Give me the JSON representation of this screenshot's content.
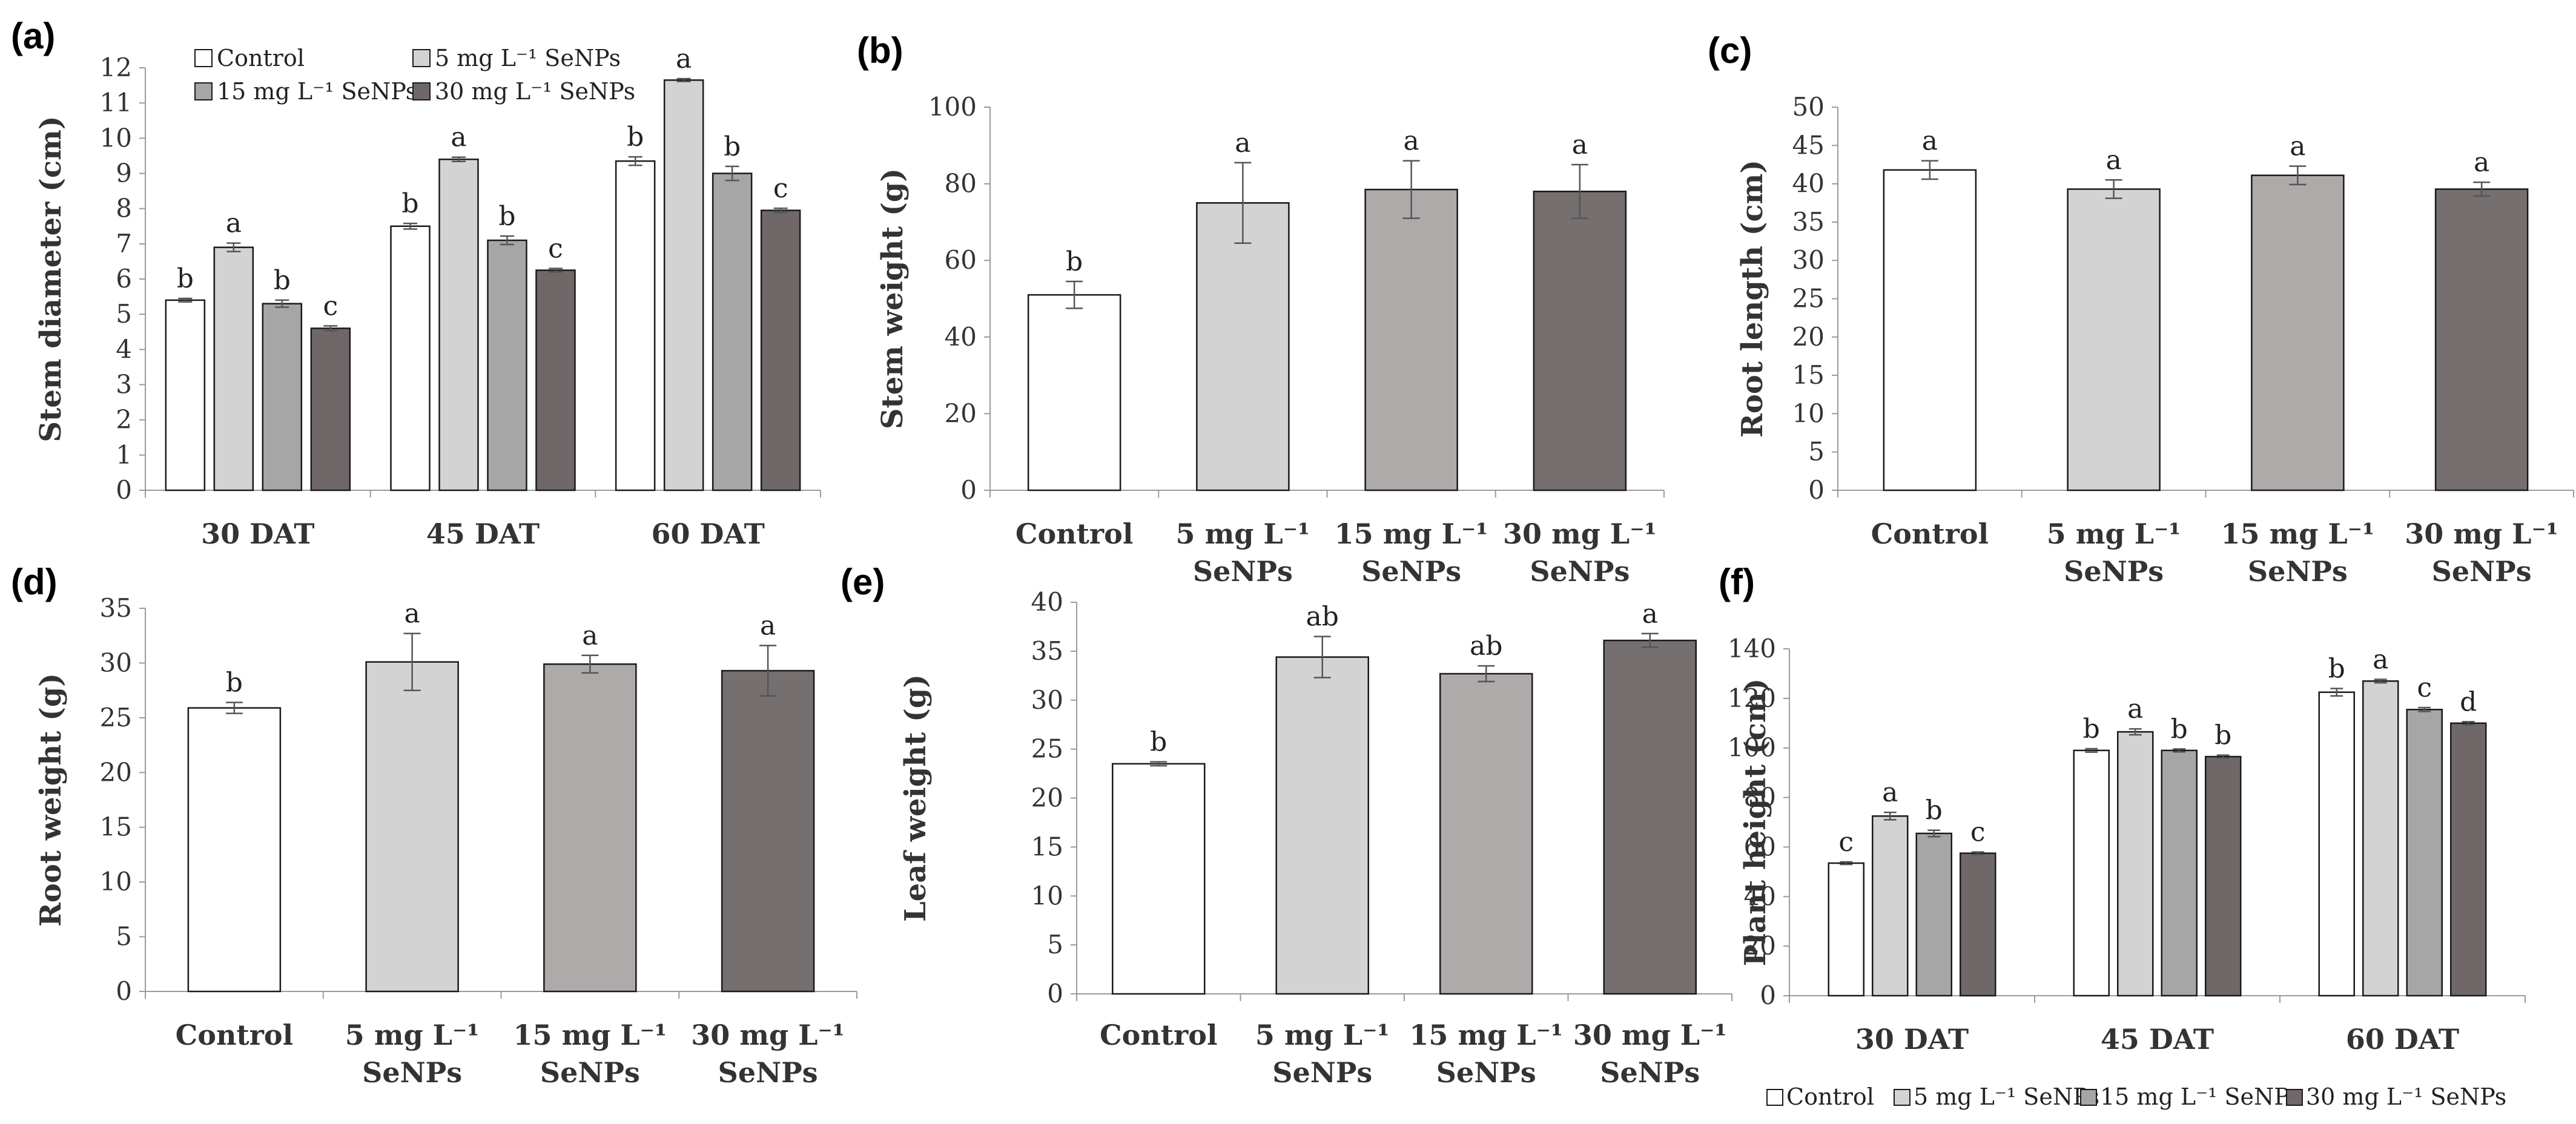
{
  "colors": {
    "Control": "#ffffff",
    "5 mg": "#d3d3d3",
    "15 mg": "#adaaa9",
    "30 mg": "#766f6f",
    "15 mg (grouped)": "#a6a6a6",
    "30 mg (grouped)": "#706868",
    "stroke": "#1a1a1a",
    "axis": "#9a9a9a"
  },
  "legend": {
    "control": "Control",
    "t5": "5 mg L⁻¹ SeNPs",
    "t15": "15 mg L⁻¹ SeNPs",
    "t30": "30 mg L⁻¹ SeNPs"
  },
  "chart_data": [
    {
      "id": "a",
      "panel_label": "(a)",
      "type": "bar",
      "ylabel": "Stem diameter (cm)",
      "ylim": [
        0,
        12
      ],
      "yticks": [
        "0",
        "1",
        "2",
        "3",
        "4",
        "5",
        "6",
        "7",
        "8",
        "9",
        "10",
        "11",
        "12"
      ],
      "categories": [
        "30 DAT",
        "45 DAT",
        "60 DAT"
      ],
      "series": [
        {
          "name": "Control",
          "values": [
            5.4,
            7.5,
            9.35
          ],
          "errors": [
            0.05,
            0.08,
            0.12
          ],
          "letters": [
            "b",
            "b",
            "b"
          ]
        },
        {
          "name": "5 mg L⁻¹ SeNPs",
          "values": [
            6.9,
            9.4,
            11.65
          ],
          "errors": [
            0.12,
            0.06,
            0.04
          ],
          "letters": [
            "a",
            "a",
            "a"
          ]
        },
        {
          "name": "15 mg L⁻¹ SeNPs",
          "values": [
            5.3,
            7.1,
            9.0
          ],
          "errors": [
            0.1,
            0.12,
            0.2
          ],
          "letters": [
            "b",
            "b",
            "b"
          ]
        },
        {
          "name": "30 mg L⁻¹ SeNPs",
          "values": [
            4.6,
            6.25,
            7.95
          ],
          "errors": [
            0.07,
            0.05,
            0.06
          ],
          "letters": [
            "c",
            "c",
            "c"
          ]
        }
      ],
      "legend_position": "top-left"
    },
    {
      "id": "b",
      "panel_label": "(b)",
      "type": "bar",
      "ylabel": "Stem weight (g)",
      "ylim": [
        0,
        100
      ],
      "yticks": [
        "0",
        "20",
        "40",
        "60",
        "80",
        "100"
      ],
      "categories": [
        [
          "Control"
        ],
        [
          "5 mg L⁻¹",
          "SeNPs"
        ],
        [
          "15 mg L⁻¹",
          "SeNPs"
        ],
        [
          "30 mg L⁻¹",
          "SeNPs"
        ]
      ],
      "values": [
        51,
        75,
        78.5,
        78
      ],
      "errors": [
        3.5,
        10.5,
        7.5,
        7
      ],
      "letters": [
        "b",
        "a",
        "a",
        "a"
      ]
    },
    {
      "id": "c",
      "panel_label": "(c)",
      "type": "bar",
      "ylabel": "Root length (cm)",
      "ylim": [
        0,
        50
      ],
      "yticks": [
        "0",
        "5",
        "10",
        "15",
        "20",
        "25",
        "30",
        "35",
        "40",
        "45",
        "50"
      ],
      "categories": [
        [
          "Control"
        ],
        [
          "5 mg L⁻¹",
          "SeNPs"
        ],
        [
          "15 mg L⁻¹",
          "SeNPs"
        ],
        [
          "30 mg L⁻¹",
          "SeNPs"
        ]
      ],
      "values": [
        41.8,
        39.3,
        41.1,
        39.3
      ],
      "errors": [
        1.2,
        1.2,
        1.2,
        0.9
      ],
      "letters": [
        "a",
        "a",
        "a",
        "a"
      ]
    },
    {
      "id": "d",
      "panel_label": "(d)",
      "type": "bar",
      "ylabel": "Root weight (g)",
      "ylim": [
        0,
        35
      ],
      "yticks": [
        "0",
        "5",
        "10",
        "15",
        "20",
        "25",
        "30",
        "35"
      ],
      "categories": [
        [
          "Control"
        ],
        [
          "5 mg L⁻¹",
          "SeNPs"
        ],
        [
          "15 mg L⁻¹",
          "SeNPs"
        ],
        [
          "30 mg L⁻¹",
          "SeNPs"
        ]
      ],
      "values": [
        25.9,
        30.1,
        29.9,
        29.3
      ],
      "errors": [
        0.5,
        2.6,
        0.8,
        2.3
      ],
      "letters": [
        "b",
        "a",
        "a",
        "a"
      ]
    },
    {
      "id": "e",
      "panel_label": "(e)",
      "type": "bar",
      "ylabel": "Leaf weight (g)",
      "ylim": [
        0,
        40
      ],
      "yticks": [
        "0",
        "5",
        "10",
        "15",
        "20",
        "25",
        "30",
        "35",
        "40"
      ],
      "categories": [
        [
          "Control"
        ],
        [
          "5 mg L⁻¹",
          "SeNPs"
        ],
        [
          "15 mg L⁻¹",
          "SeNPs"
        ],
        [
          "30 mg L⁻¹",
          "SeNPs"
        ]
      ],
      "values": [
        23.5,
        34.4,
        32.7,
        36.1
      ],
      "errors": [
        0.2,
        2.1,
        0.8,
        0.7
      ],
      "letters": [
        "b",
        "ab",
        "ab",
        "a"
      ]
    },
    {
      "id": "f",
      "panel_label": "(f)",
      "type": "bar",
      "ylabel": "Plant height (cm)",
      "ylim": [
        0,
        140
      ],
      "yticks": [
        "0",
        "20",
        "40",
        "60",
        "80",
        "100",
        "120",
        "140"
      ],
      "categories": [
        "30 DAT",
        "45 DAT",
        "60 DAT"
      ],
      "series": [
        {
          "name": "Control",
          "values": [
            53.5,
            99,
            122.5
          ],
          "errors": [
            0.5,
            0.7,
            1.5
          ],
          "letters": [
            "c",
            "b",
            "b"
          ]
        },
        {
          "name": "5 mg L⁻¹ SeNPs",
          "values": [
            72.5,
            106.5,
            127
          ],
          "errors": [
            1.5,
            1.2,
            0.7
          ],
          "letters": [
            "a",
            "a",
            "a"
          ]
        },
        {
          "name": "15 mg L⁻¹ SeNPs",
          "values": [
            65.5,
            99,
            115.5
          ],
          "errors": [
            1.3,
            0.6,
            0.8
          ],
          "letters": [
            "b",
            "b",
            "c"
          ]
        },
        {
          "name": "30 mg L⁻¹ SeNPs",
          "values": [
            57.5,
            96.5,
            110
          ],
          "errors": [
            0.5,
            0.6,
            0.6
          ],
          "letters": [
            "c",
            "b",
            "d"
          ]
        }
      ],
      "legend_position": "bottom"
    }
  ]
}
